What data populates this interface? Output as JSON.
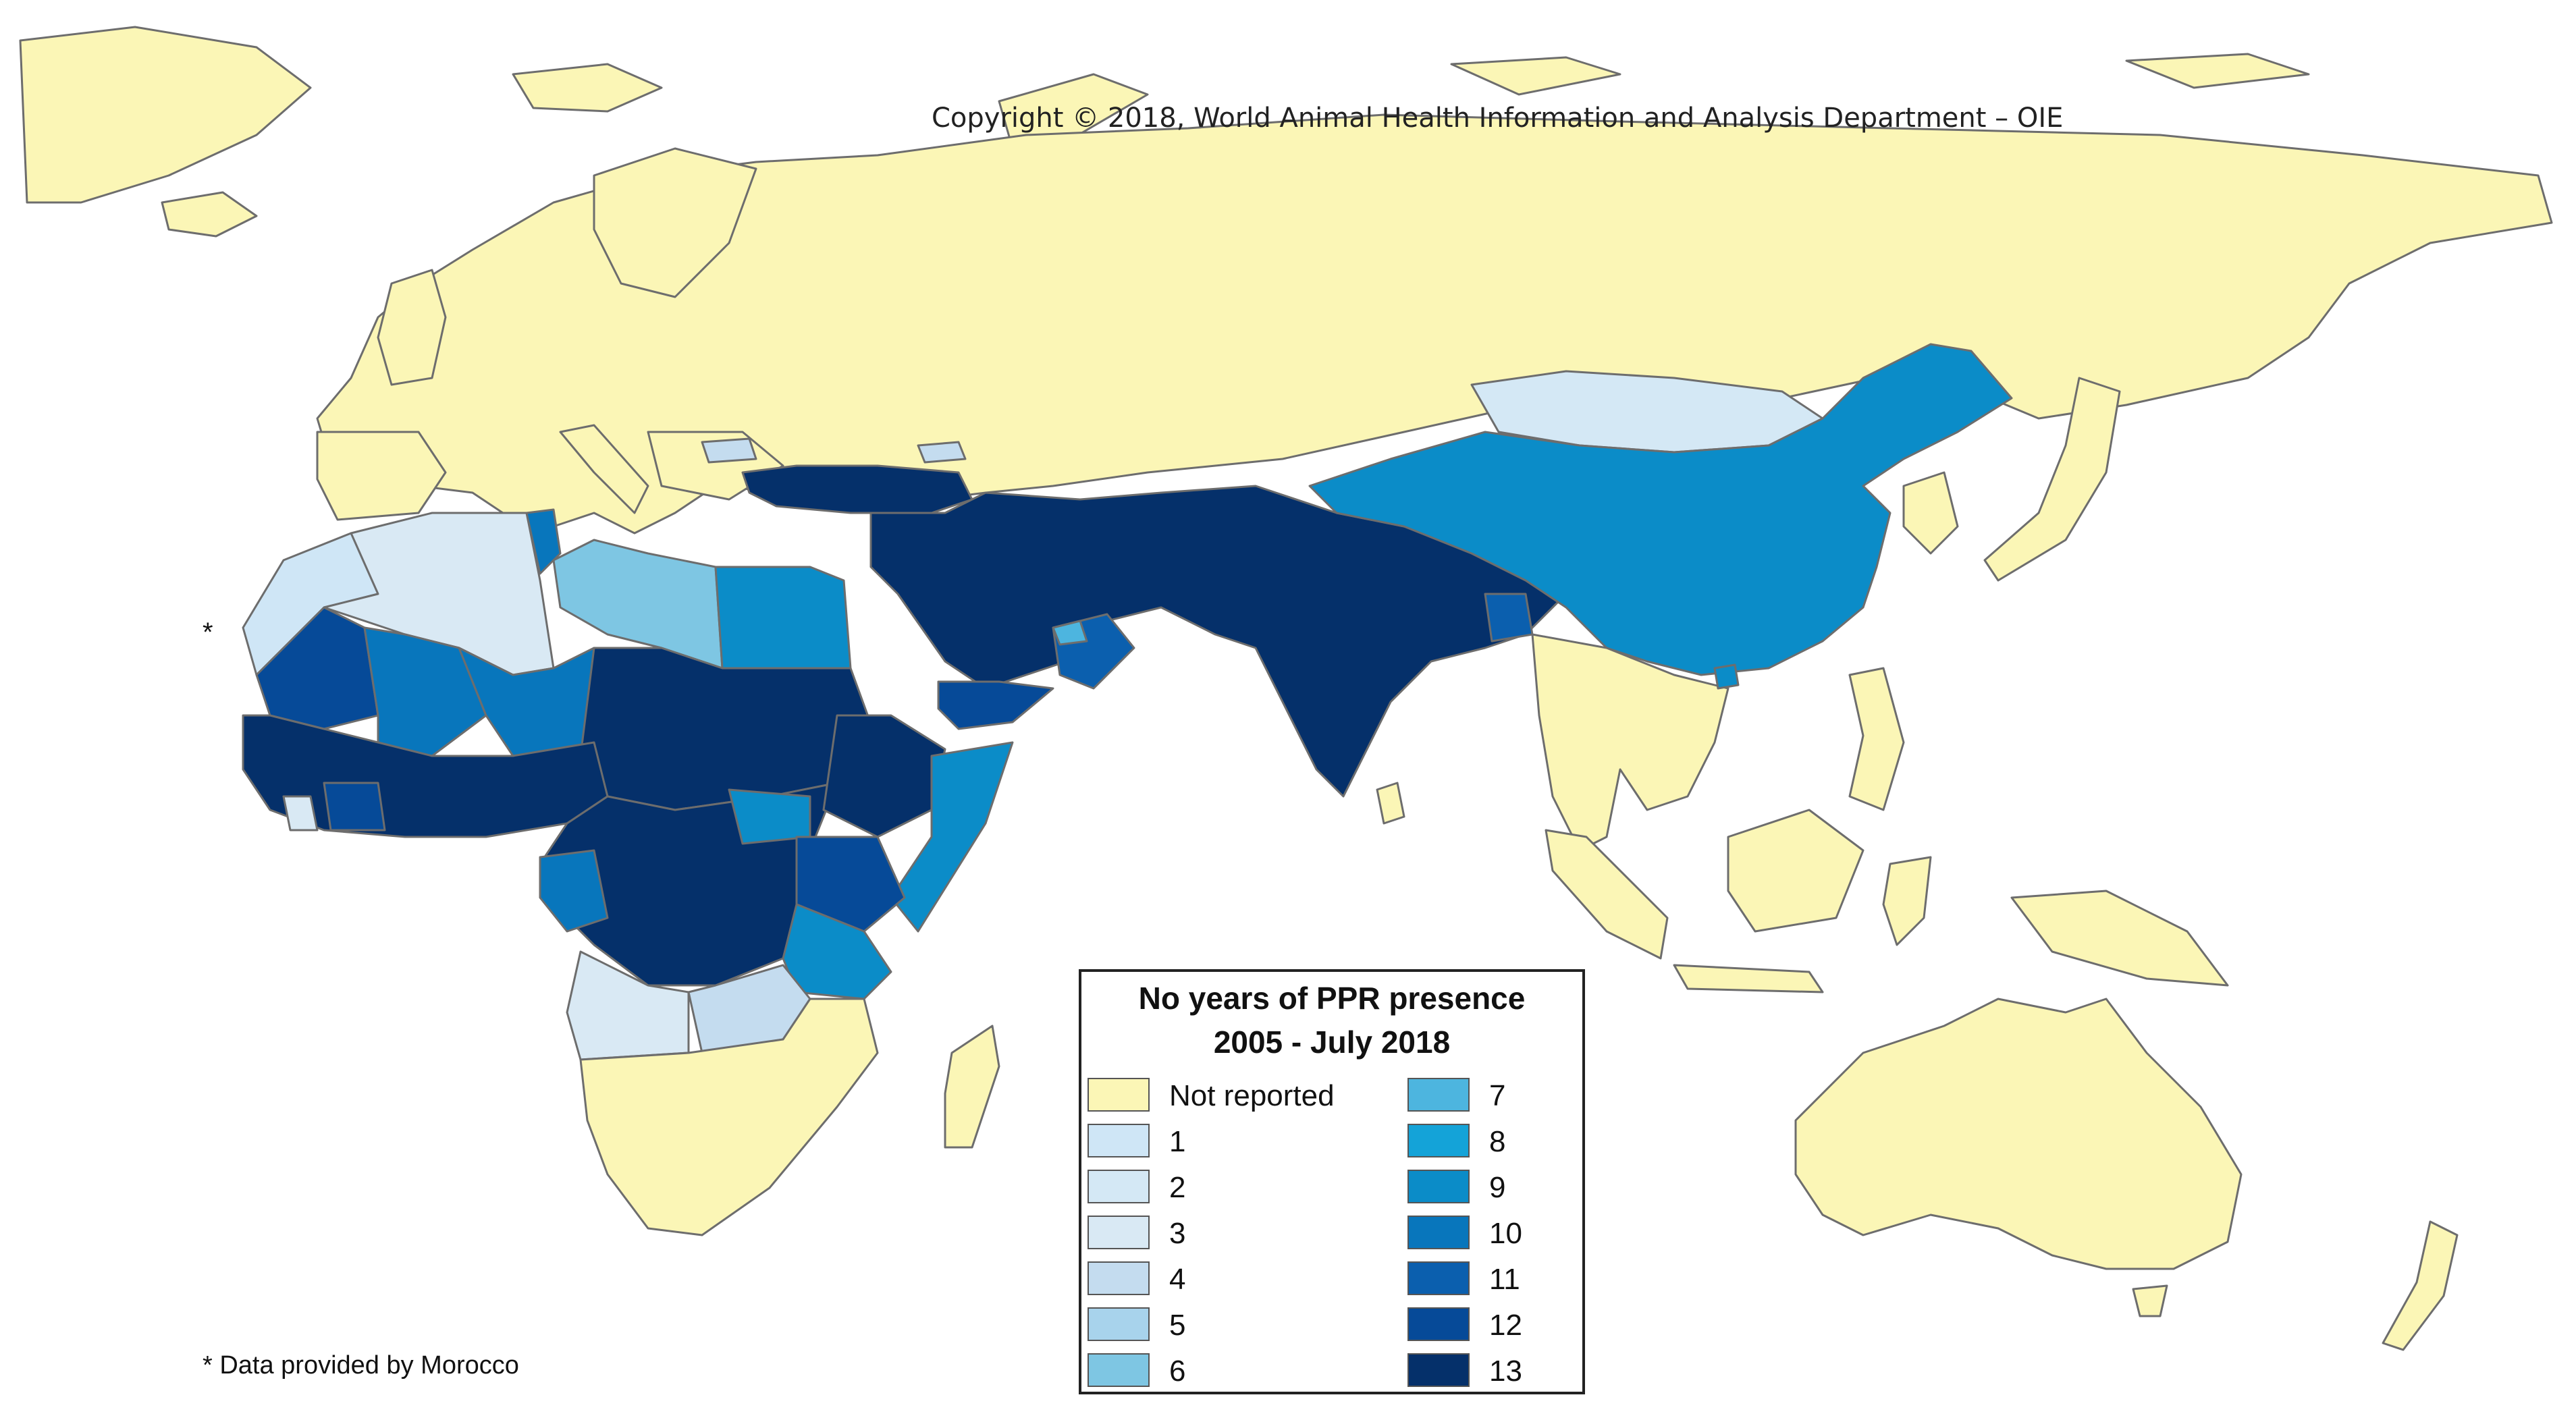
{
  "copyright": "Copyright © 2018, World Animal Health Information and Analysis Department – OIE",
  "footnote": "* Data provided by Morocco",
  "asterisk": "*",
  "legend": {
    "title_line1": "No years of PPR presence",
    "title_line2": "2005 - July 2018",
    "items": [
      {
        "label": "Not reported",
        "color": "#fbf6b6"
      },
      {
        "label": "1",
        "color": "#cfe6f6"
      },
      {
        "label": "2",
        "color": "#d4e8f5"
      },
      {
        "label": "3",
        "color": "#d9e9f4"
      },
      {
        "label": "4",
        "color": "#c4dcef"
      },
      {
        "label": "5",
        "color": "#a8d3ec"
      },
      {
        "label": "6",
        "color": "#7ec6e3"
      },
      {
        "label": "7",
        "color": "#4db5df"
      },
      {
        "label": "8",
        "color": "#14a3d8"
      },
      {
        "label": "9",
        "color": "#0b8cc8"
      },
      {
        "label": "10",
        "color": "#0876bc"
      },
      {
        "label": "11",
        "color": "#0b5fae"
      },
      {
        "label": "12",
        "color": "#064a98"
      },
      {
        "label": "13",
        "color": "#05306a"
      }
    ]
  },
  "regions": [
    {
      "name": "europe-russia",
      "value": "Not reported"
    },
    {
      "name": "morocco-western-sahara",
      "value": "1"
    },
    {
      "name": "algeria",
      "value": "3"
    },
    {
      "name": "libya",
      "value": "6"
    },
    {
      "name": "tunisia",
      "value": "10"
    },
    {
      "name": "egypt",
      "value": "9"
    },
    {
      "name": "mauritania",
      "value": "12"
    },
    {
      "name": "mali",
      "value": "10"
    },
    {
      "name": "niger",
      "value": "10"
    },
    {
      "name": "chad-sudan-sahel",
      "value": "13"
    },
    {
      "name": "west-africa-coast",
      "value": "13"
    },
    {
      "name": "central-africa",
      "value": "13"
    },
    {
      "name": "ethiopia",
      "value": "13"
    },
    {
      "name": "somalia",
      "value": "9"
    },
    {
      "name": "kenya-uganda",
      "value": "12"
    },
    {
      "name": "tanzania",
      "value": "9"
    },
    {
      "name": "angola",
      "value": "3"
    },
    {
      "name": "zambia",
      "value": "4"
    },
    {
      "name": "southern-africa",
      "value": "Not reported"
    },
    {
      "name": "turkey",
      "value": "13"
    },
    {
      "name": "middle-east-south-asia",
      "value": "13"
    },
    {
      "name": "oman",
      "value": "11"
    },
    {
      "name": "yemen",
      "value": "12"
    },
    {
      "name": "mongolia",
      "value": "2"
    },
    {
      "name": "china",
      "value": "9"
    },
    {
      "name": "bangladesh",
      "value": "11"
    },
    {
      "name": "southeast-asia",
      "value": "Not reported"
    },
    {
      "name": "australia",
      "value": "Not reported"
    }
  ]
}
